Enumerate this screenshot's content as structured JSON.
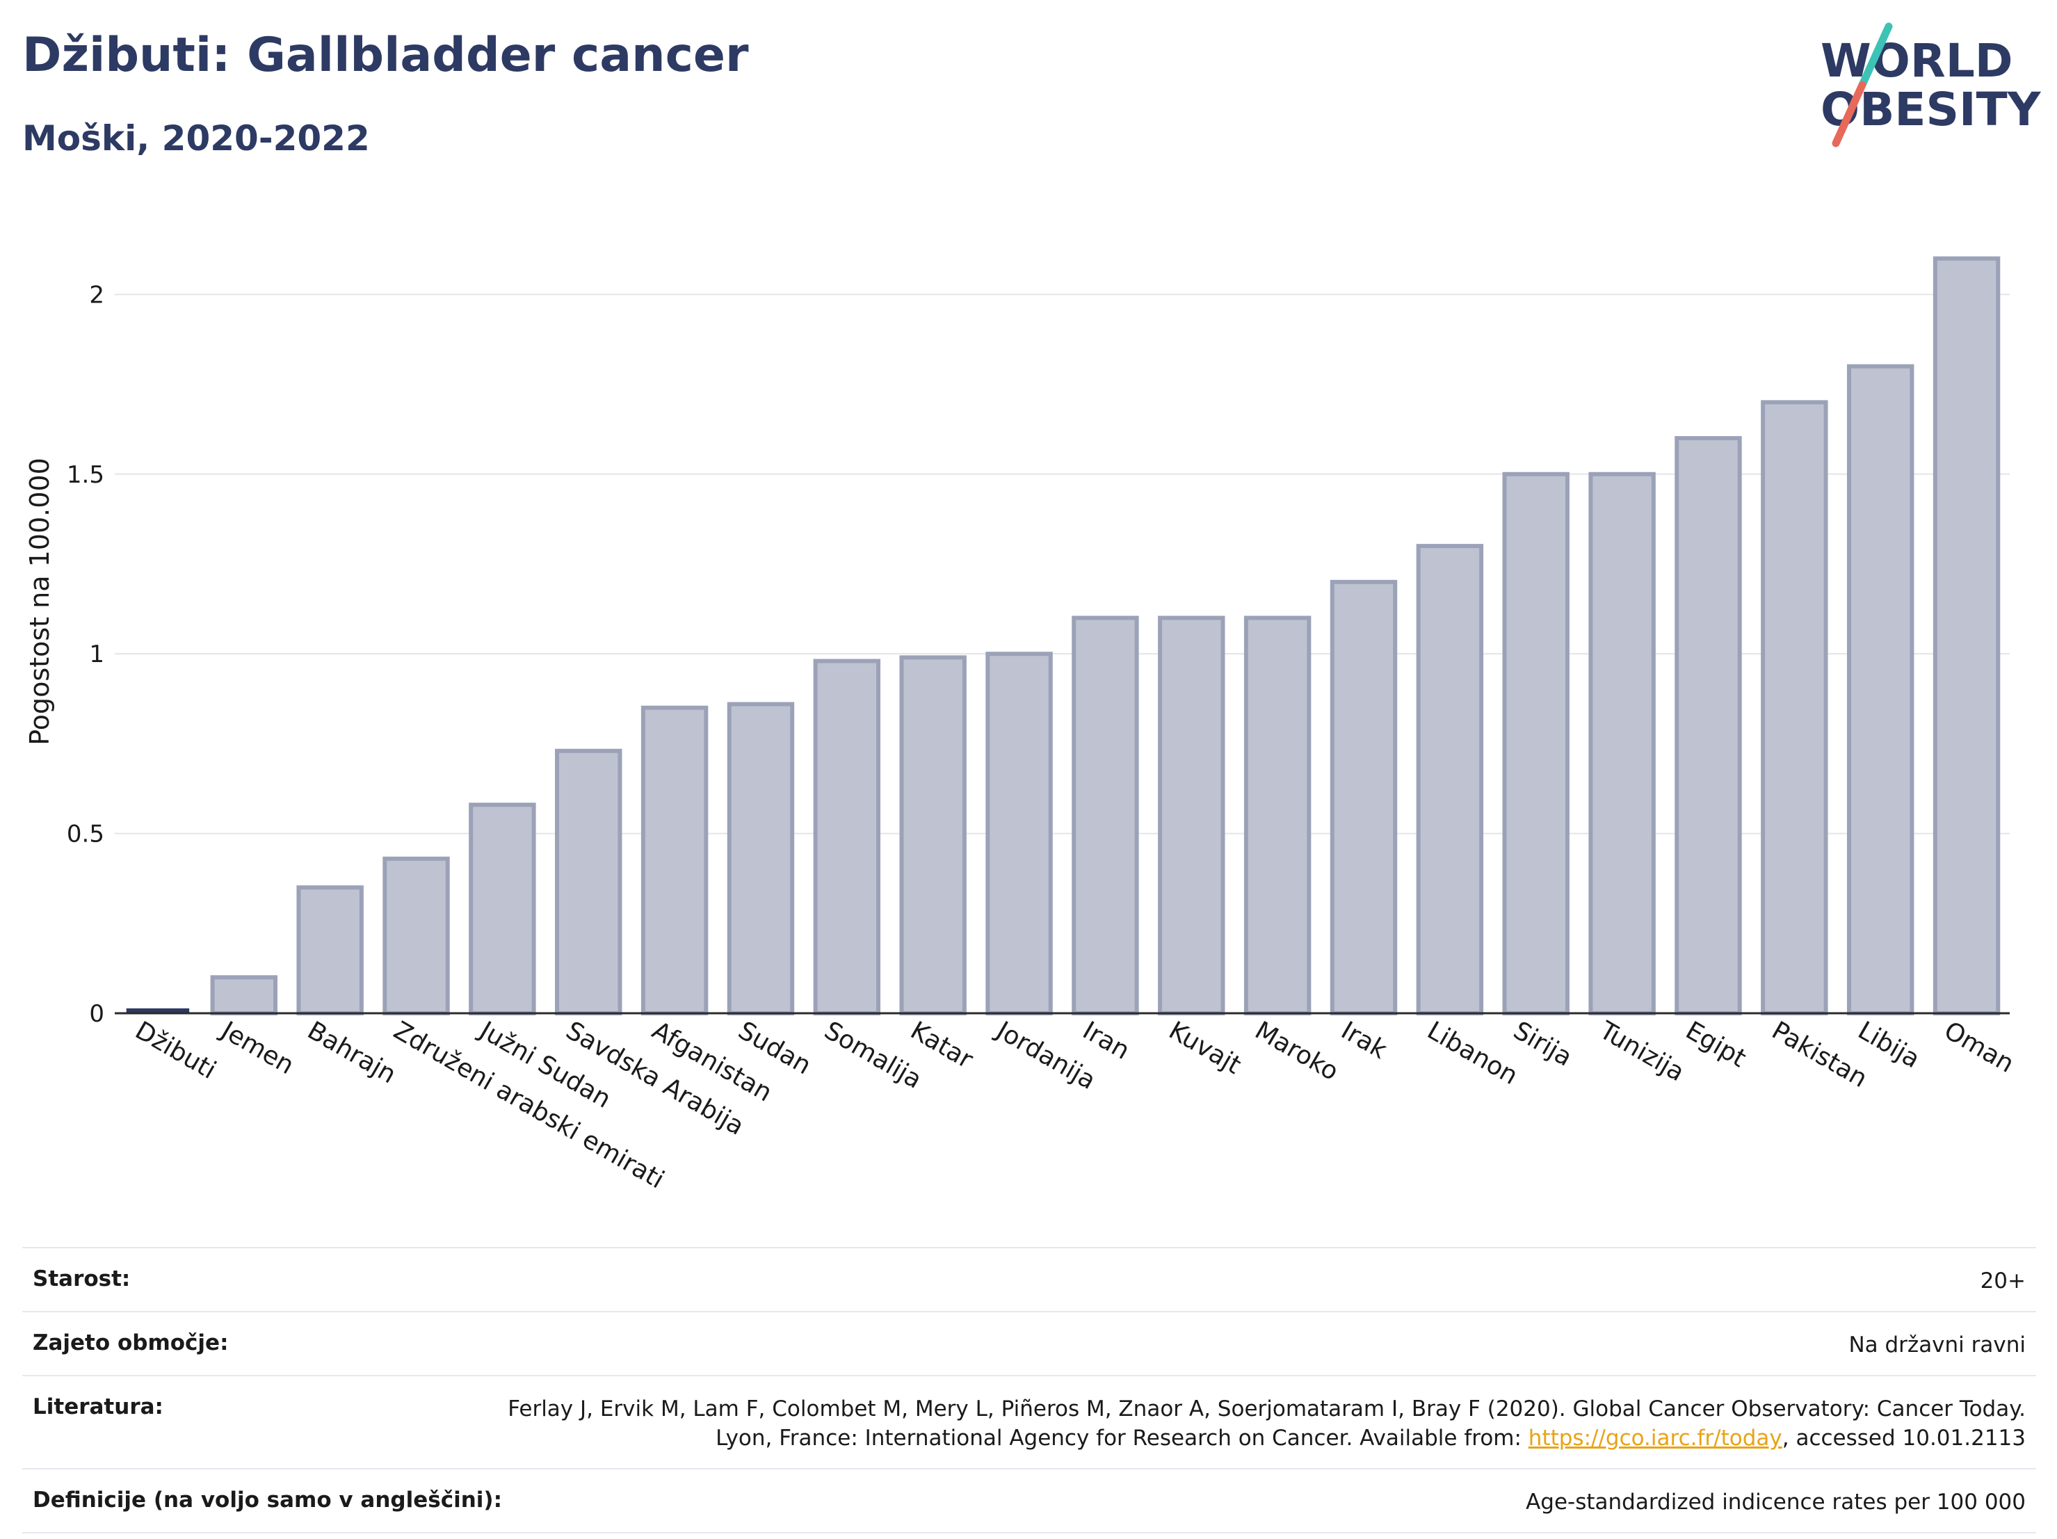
{
  "header": {
    "title": "Džibuti: Gallbladder cancer",
    "subtitle": "Moški, 2020-2022"
  },
  "logo": {
    "line1": "WORLD",
    "line2": "OBESITY",
    "colors": {
      "text": "#2d3a63",
      "teal": "#3cc3b6",
      "coral": "#e8685a"
    }
  },
  "chart_data": {
    "type": "bar",
    "ylabel": "Pogostost na 100.000",
    "ylim": [
      0,
      2.2
    ],
    "yticks": [
      0,
      0.5,
      1,
      1.5,
      2
    ],
    "ytick_labels": [
      "0",
      "0.5",
      "1",
      "1.5",
      "2"
    ],
    "grid": true,
    "categories": [
      "Džibuti",
      "Jemen",
      "Bahrajn",
      "Združeni arabski emirati",
      "Južni Sudan",
      "Savdska Arabija",
      "Afganistan",
      "Sudan",
      "Somalija",
      "Katar",
      "Jordanija",
      "Iran",
      "Kuvajt",
      "Maroko",
      "Irak",
      "Libanon",
      "Sirija",
      "Tunizija",
      "Egipt",
      "Pakistan",
      "Libija",
      "Oman"
    ],
    "values": [
      0.01,
      0.1,
      0.35,
      0.43,
      0.58,
      0.73,
      0.85,
      0.86,
      0.98,
      0.99,
      1.0,
      1.1,
      1.1,
      1.1,
      1.2,
      1.3,
      1.5,
      1.5,
      1.6,
      1.7,
      1.8,
      2.1
    ],
    "highlight_index": 0,
    "colors": {
      "bar_fill": "#bfc3d1",
      "bar_stroke": "#9ba2b8",
      "highlight": "#2d3a63"
    }
  },
  "meta": [
    {
      "label": "Starost:",
      "value": "20+"
    },
    {
      "label": "Zajeto območje:",
      "value": "Na državni ravni"
    },
    {
      "label": "Literatura:",
      "value": "Ferlay J, Ervik M, Lam F, Colombet M, Mery L, Piñeros M, Znaor A, Soerjomataram I, Bray F (2020). Global Cancer Observatory: Cancer Today. Lyon, France: International Agency for Research on Cancer. Available from: ",
      "link": "https://gco.iarc.fr/today",
      "value_after": ", accessed 10.01.2113"
    },
    {
      "label": "Definicije (na voljo samo v angleščini):",
      "value": "Age-standardized indicence rates per 100 000"
    }
  ]
}
